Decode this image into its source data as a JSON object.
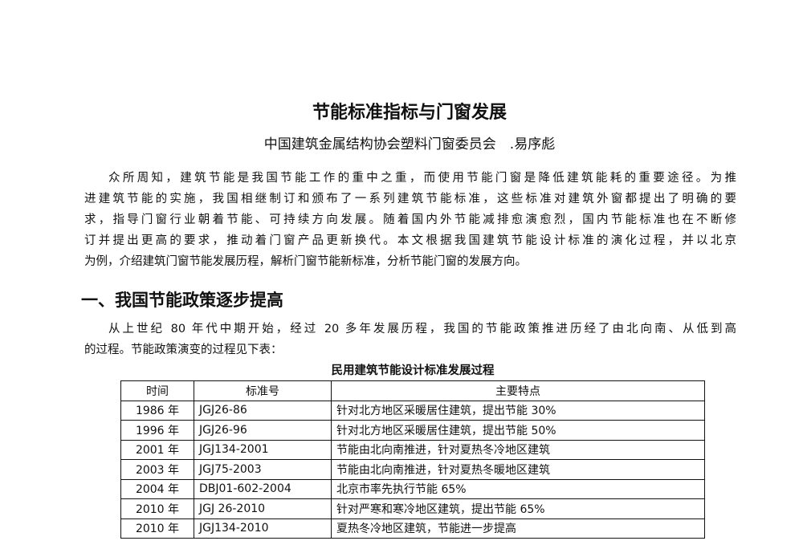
{
  "title": "节能标准指标与门窗发展",
  "subtitle": "中国建筑金属结构协会塑料门窗委员会　.易序彪",
  "intro_lines": [
    "众所周知，建筑节能是我国节能工作的重中之重，而使用节能门窗是降低建筑能耗的重要途径。为推",
    "进建筑节能的实施，我国相继制订和颁布了一系列建筑节能标准，这些标准对建筑外窗都提出了明确的要",
    "求，指导门窗行业朝着节能、可持续方向发展。随着国内外节能减排愈演愈烈，国内节能标准也在不断修",
    "订并提出更高的要求，推动着门窗产品更新换代。本文根据我国建筑节能设计标准的演化过程，并以北京",
    "为例，介绍建筑门窗节能发展历程，解析门窗节能新标准，分析节能门窗的发展方向。"
  ],
  "section1": {
    "heading": "一、我国节能政策逐步提高",
    "lines": [
      "从上世纪 80 年代中期开始，经过 20 多年发展历程，我国的节能政策推进历经了由北向南、从低到高",
      "的过程。节能政策演变的过程见下表："
    ]
  },
  "table": {
    "caption": "民用建筑节能设计标准发展过程",
    "headers": [
      "时间",
      "标准号",
      "主要特点"
    ],
    "rows": [
      [
        "1986 年",
        "JGJ26-86",
        "针对北方地区采暖居住建筑，提出节能 30%"
      ],
      [
        "1996 年",
        "JGJ26-96",
        "针对北方地区采暖居住建筑，提出节能 50%"
      ],
      [
        "2001 年",
        "JGJ134-2001",
        "节能由北向南推进，针对夏热冬冷地区建筑"
      ],
      [
        "2003 年",
        "JGJ75-2003",
        "节能由北向南推进，针对夏热冬暖地区建筑"
      ],
      [
        "2004 年",
        "DBJ01-602-2004",
        "北京市率先执行节能 65%"
      ],
      [
        "2010 年",
        "JGJ 26-2010",
        "针对严寒和寒冷地区建筑，提出节能 65%"
      ],
      [
        "2010 年",
        "JGJ134-2010",
        "夏热冬冷地区建筑，节能进一步提高"
      ]
    ]
  }
}
